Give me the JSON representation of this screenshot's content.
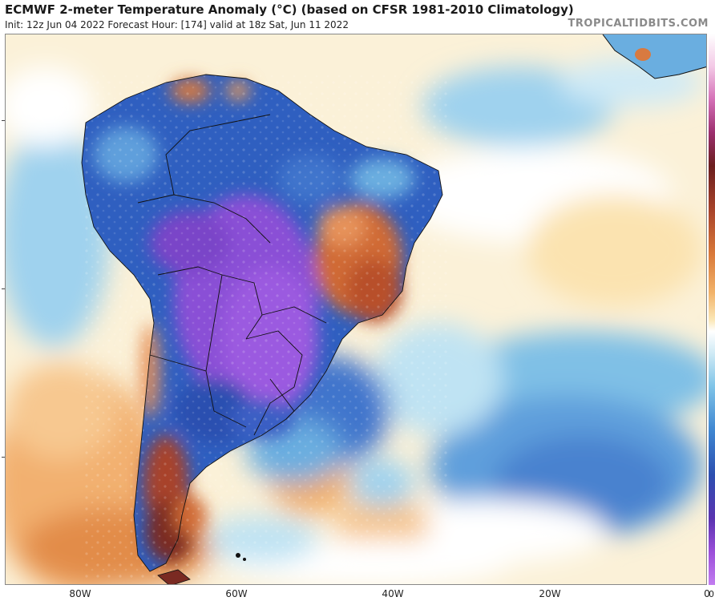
{
  "header": {
    "title": "ECMWF 2-meter Temperature Anomaly (°C) (based on CFSR 1981-2010 Climatology)",
    "subtitle": "Init: 12z Jun 04 2022   Forecast Hour: [174]   valid at 18z Sat, Jun 11 2022",
    "brand": "TROPICALTIDBITS.COM"
  },
  "map": {
    "variable": "2-meter temperature anomaly",
    "region": "South America",
    "longitude_labels": [
      "80W",
      "60W",
      "40W",
      "20W",
      "0"
    ],
    "colorbar_label_visible": "0",
    "colors": {
      "strong_cold": "#8a3fd1",
      "cold": "#2f5fc0",
      "cool": "#6aaee0",
      "slightly_cool": "#bfe3f3",
      "neutral": "#ffffff",
      "slightly_warm": "#fbe8b8",
      "warm": "#f2a766",
      "hot": "#c9582e",
      "very_hot": "#7a2a22",
      "border": "#111111"
    }
  }
}
